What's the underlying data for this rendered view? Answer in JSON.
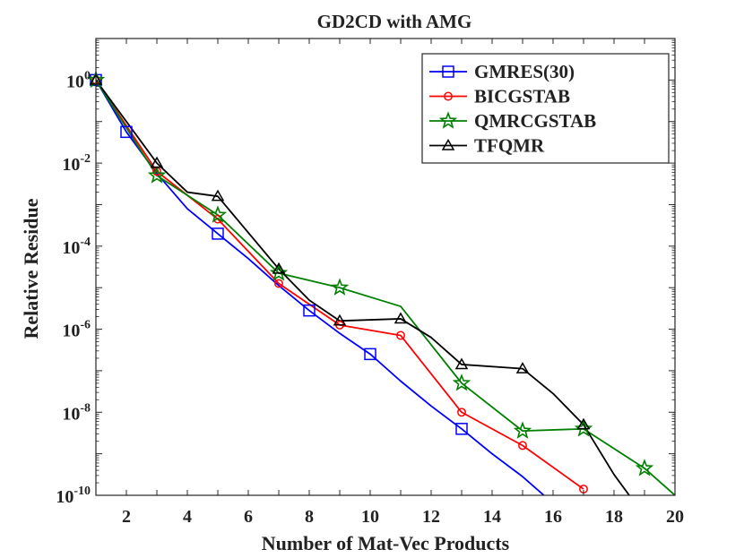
{
  "chart_data": {
    "type": "line",
    "title": "GD2CD with AMG",
    "xlabel": "Number of Mat-Vec Products",
    "ylabel": "Relative Residue",
    "xlim": [
      1,
      20
    ],
    "ylim_log10": [
      -10,
      1
    ],
    "yscale": "log",
    "grid": false,
    "legend_position": "top-right",
    "x_ticks": [
      2,
      4,
      6,
      8,
      10,
      12,
      14,
      16,
      18,
      20
    ],
    "x_tick_labels": [
      "2",
      "4",
      "6",
      "8",
      "10",
      "12",
      "14",
      "16",
      "18",
      "20"
    ],
    "y_ticks": [
      {
        "base": "10",
        "exp": "0",
        "log": 0
      },
      {
        "base": "10",
        "exp": "-2",
        "log": -2
      },
      {
        "base": "10",
        "exp": "-4",
        "log": -4
      },
      {
        "base": "10",
        "exp": "-6",
        "log": -6
      },
      {
        "base": "10",
        "exp": "-8",
        "log": -8
      },
      {
        "base": "10",
        "exp": "-10",
        "log": -10
      }
    ],
    "series": [
      {
        "name": "GMRES(30)",
        "color": "#0000ff",
        "marker": "square",
        "x": [
          1,
          2,
          3,
          4,
          5,
          6,
          7,
          8,
          9,
          10,
          11,
          12,
          13,
          14,
          15,
          15.7
        ],
        "log10_y": [
          0,
          -1.25,
          -2.25,
          -3.1,
          -3.7,
          -4.3,
          -4.95,
          -5.55,
          -6.1,
          -6.6,
          -7.25,
          -7.85,
          -8.4,
          -9.0,
          -9.55,
          -10
        ],
        "marker_x": [
          1,
          2,
          5,
          8,
          10,
          13
        ]
      },
      {
        "name": "BICGSTAB",
        "color": "#ff0000",
        "marker": "circle",
        "x": [
          1,
          3,
          5,
          7,
          9,
          11,
          13,
          15,
          17
        ],
        "log10_y": [
          0,
          -2.2,
          -3.35,
          -4.9,
          -5.9,
          -6.15,
          -8.0,
          -8.8,
          -9.85
        ],
        "marker_x": [
          1,
          3,
          5,
          7,
          9,
          11,
          13,
          15,
          17
        ]
      },
      {
        "name": "QMRCGSTAB",
        "color": "#008000",
        "marker": "star",
        "x": [
          1,
          3,
          5,
          7,
          9,
          11,
          13,
          15,
          17,
          19,
          20
        ],
        "log10_y": [
          0,
          -2.3,
          -3.25,
          -4.65,
          -5.0,
          -5.45,
          -7.3,
          -8.45,
          -8.4,
          -9.35,
          -10
        ],
        "marker_x": [
          1,
          3,
          5,
          7,
          9,
          13,
          15,
          17,
          19
        ]
      },
      {
        "name": "TFQMR",
        "color": "#000000",
        "marker": "triangle",
        "x": [
          1,
          3,
          4,
          5,
          7,
          8,
          9,
          11,
          12,
          13,
          15,
          16,
          17,
          18,
          18.5
        ],
        "log10_y": [
          0,
          -2.0,
          -2.7,
          -2.8,
          -4.55,
          -5.3,
          -5.8,
          -5.75,
          -6.2,
          -6.85,
          -6.95,
          -7.55,
          -8.3,
          -9.5,
          -10
        ],
        "marker_x": [
          1,
          3,
          5,
          7,
          9,
          11,
          13,
          15,
          17
        ]
      }
    ]
  }
}
